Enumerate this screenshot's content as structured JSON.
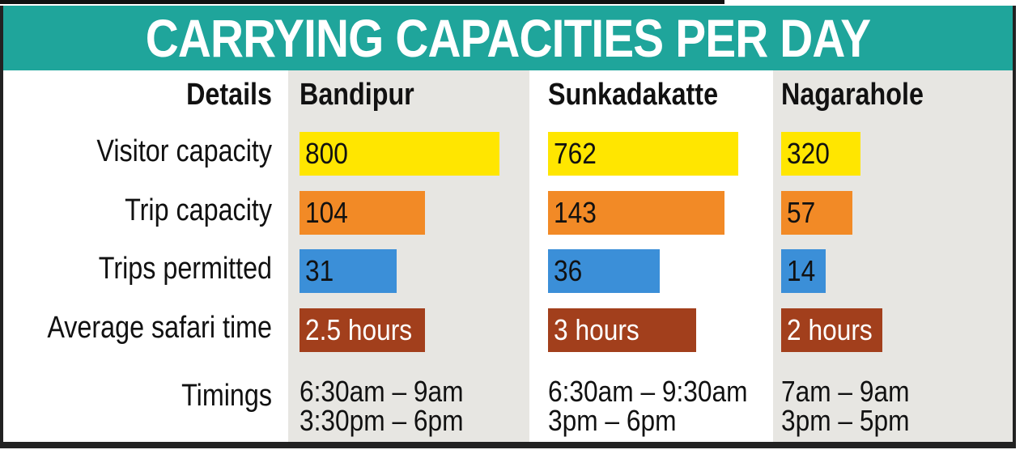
{
  "header": {
    "title": "CARRYING CAPACITIES PER DAY"
  },
  "table": {
    "columns": [
      "Details",
      "Bandipur",
      "Sunkadakatte",
      "Nagarahole"
    ],
    "rows": [
      [
        "Visitor capacity",
        800,
        762,
        320
      ],
      [
        "Trip capacity",
        104,
        143,
        57
      ],
      [
        "Trips permitted",
        31,
        36,
        14
      ],
      [
        "Average safari time",
        "2.5 hours",
        "3 hours",
        "2 hours"
      ],
      [
        "Timings",
        [
          "6:30am – 9am",
          "3:30pm – 6pm"
        ],
        [
          "6:30am – 9:30am",
          "3pm – 6pm"
        ],
        [
          "7am – 9am",
          "3pm – 5pm"
        ]
      ]
    ]
  }
}
